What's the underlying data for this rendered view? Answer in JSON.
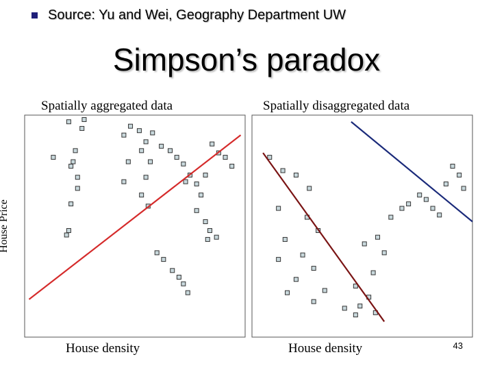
{
  "header": {
    "source": "Source: Yu and Wei, Geography Department UW",
    "title": "Simpson’s paradox"
  },
  "page_number": "43",
  "colors": {
    "bullet": "#1f1f7a",
    "marker_fill": "#c8d8dc",
    "aggregated_fit": "#d52b2b",
    "disaggregated_fit_low": "#7a1414",
    "disaggregated_fit_high": "#1a2a7a"
  },
  "chart_data": [
    {
      "type": "scatter",
      "title": "Spatially aggregated data",
      "xlabel": "House density",
      "ylabel": "House Price",
      "xlim": [
        0,
        100
      ],
      "ylim": [
        0,
        100
      ],
      "grid": false,
      "series": [
        {
          "points": [
            [
              13,
              81
            ],
            [
              21,
              77
            ],
            [
              20,
              97
            ],
            [
              21,
              60
            ],
            [
              19,
              46
            ],
            [
              20,
              48
            ],
            [
              24,
              67
            ],
            [
              23,
              84
            ],
            [
              26,
              94
            ],
            [
              22,
              79
            ],
            [
              24,
              72
            ],
            [
              27,
              98
            ],
            [
              45,
              91
            ],
            [
              48,
              95
            ],
            [
              52,
              93
            ],
            [
              55,
              88
            ],
            [
              58,
              92
            ],
            [
              47,
              79
            ],
            [
              45,
              70
            ],
            [
              53,
              84
            ],
            [
              57,
              79
            ],
            [
              55,
              72
            ],
            [
              53,
              64
            ],
            [
              56,
              59
            ],
            [
              62,
              86
            ],
            [
              66,
              84
            ],
            [
              69,
              81
            ],
            [
              72,
              78
            ],
            [
              75,
              73
            ],
            [
              78,
              69
            ],
            [
              73,
              70
            ],
            [
              82,
              73
            ],
            [
              85,
              87
            ],
            [
              88,
              83
            ],
            [
              91,
              81
            ],
            [
              94,
              77
            ],
            [
              80,
              64
            ],
            [
              78,
              57
            ],
            [
              82,
              52
            ],
            [
              87,
              45
            ],
            [
              83,
              44
            ],
            [
              84,
              48
            ],
            [
              60,
              38
            ],
            [
              63,
              35
            ],
            [
              67,
              30
            ],
            [
              70,
              27
            ],
            [
              72,
              24
            ],
            [
              74,
              20
            ]
          ]
        },
        {
          "name": "",
          "type": "fit_line",
          "points": [
            [
              2,
              17
            ],
            [
              98,
              91
            ]
          ]
        }
      ]
    },
    {
      "type": "scatter",
      "title": "Spatially disaggregated data",
      "xlabel": "House density",
      "ylabel": "",
      "xlim": [
        0,
        100
      ],
      "ylim": [
        0,
        100
      ],
      "grid": false,
      "series": [
        {
          "name": "",
          "points": [
            [
              8,
              81
            ],
            [
              14,
              75
            ],
            [
              20,
              73
            ],
            [
              26,
              67
            ],
            [
              12,
              58
            ],
            [
              25,
              54
            ],
            [
              30,
              48
            ],
            [
              15,
              44
            ],
            [
              23,
              37
            ],
            [
              28,
              31
            ],
            [
              12,
              35
            ],
            [
              20,
              26
            ],
            [
              33,
              21
            ],
            [
              16,
              20
            ],
            [
              28,
              16
            ],
            [
              42,
              13
            ],
            [
              56,
              11
            ],
            [
              47,
              10
            ],
            [
              49,
              14
            ],
            [
              53,
              18
            ],
            [
              47,
              23
            ],
            [
              55,
              29
            ],
            [
              60,
              38
            ],
            [
              51,
              42
            ],
            [
              57,
              45
            ],
            [
              63,
              54
            ],
            [
              71,
              60
            ],
            [
              68,
              58
            ],
            [
              76,
              64
            ],
            [
              79,
              62
            ],
            [
              82,
              58
            ],
            [
              85,
              55
            ],
            [
              88,
              69
            ],
            [
              91,
              77
            ],
            [
              94,
              73
            ],
            [
              96,
              67
            ]
          ]
        },
        {
          "name": "",
          "type": "fit_line",
          "points": [
            [
              5,
              83
            ],
            [
              60,
              7
            ]
          ]
        },
        {
          "name": "",
          "type": "fit_line",
          "points": [
            [
              45,
              97
            ],
            [
              100,
              52
            ]
          ]
        }
      ]
    }
  ]
}
